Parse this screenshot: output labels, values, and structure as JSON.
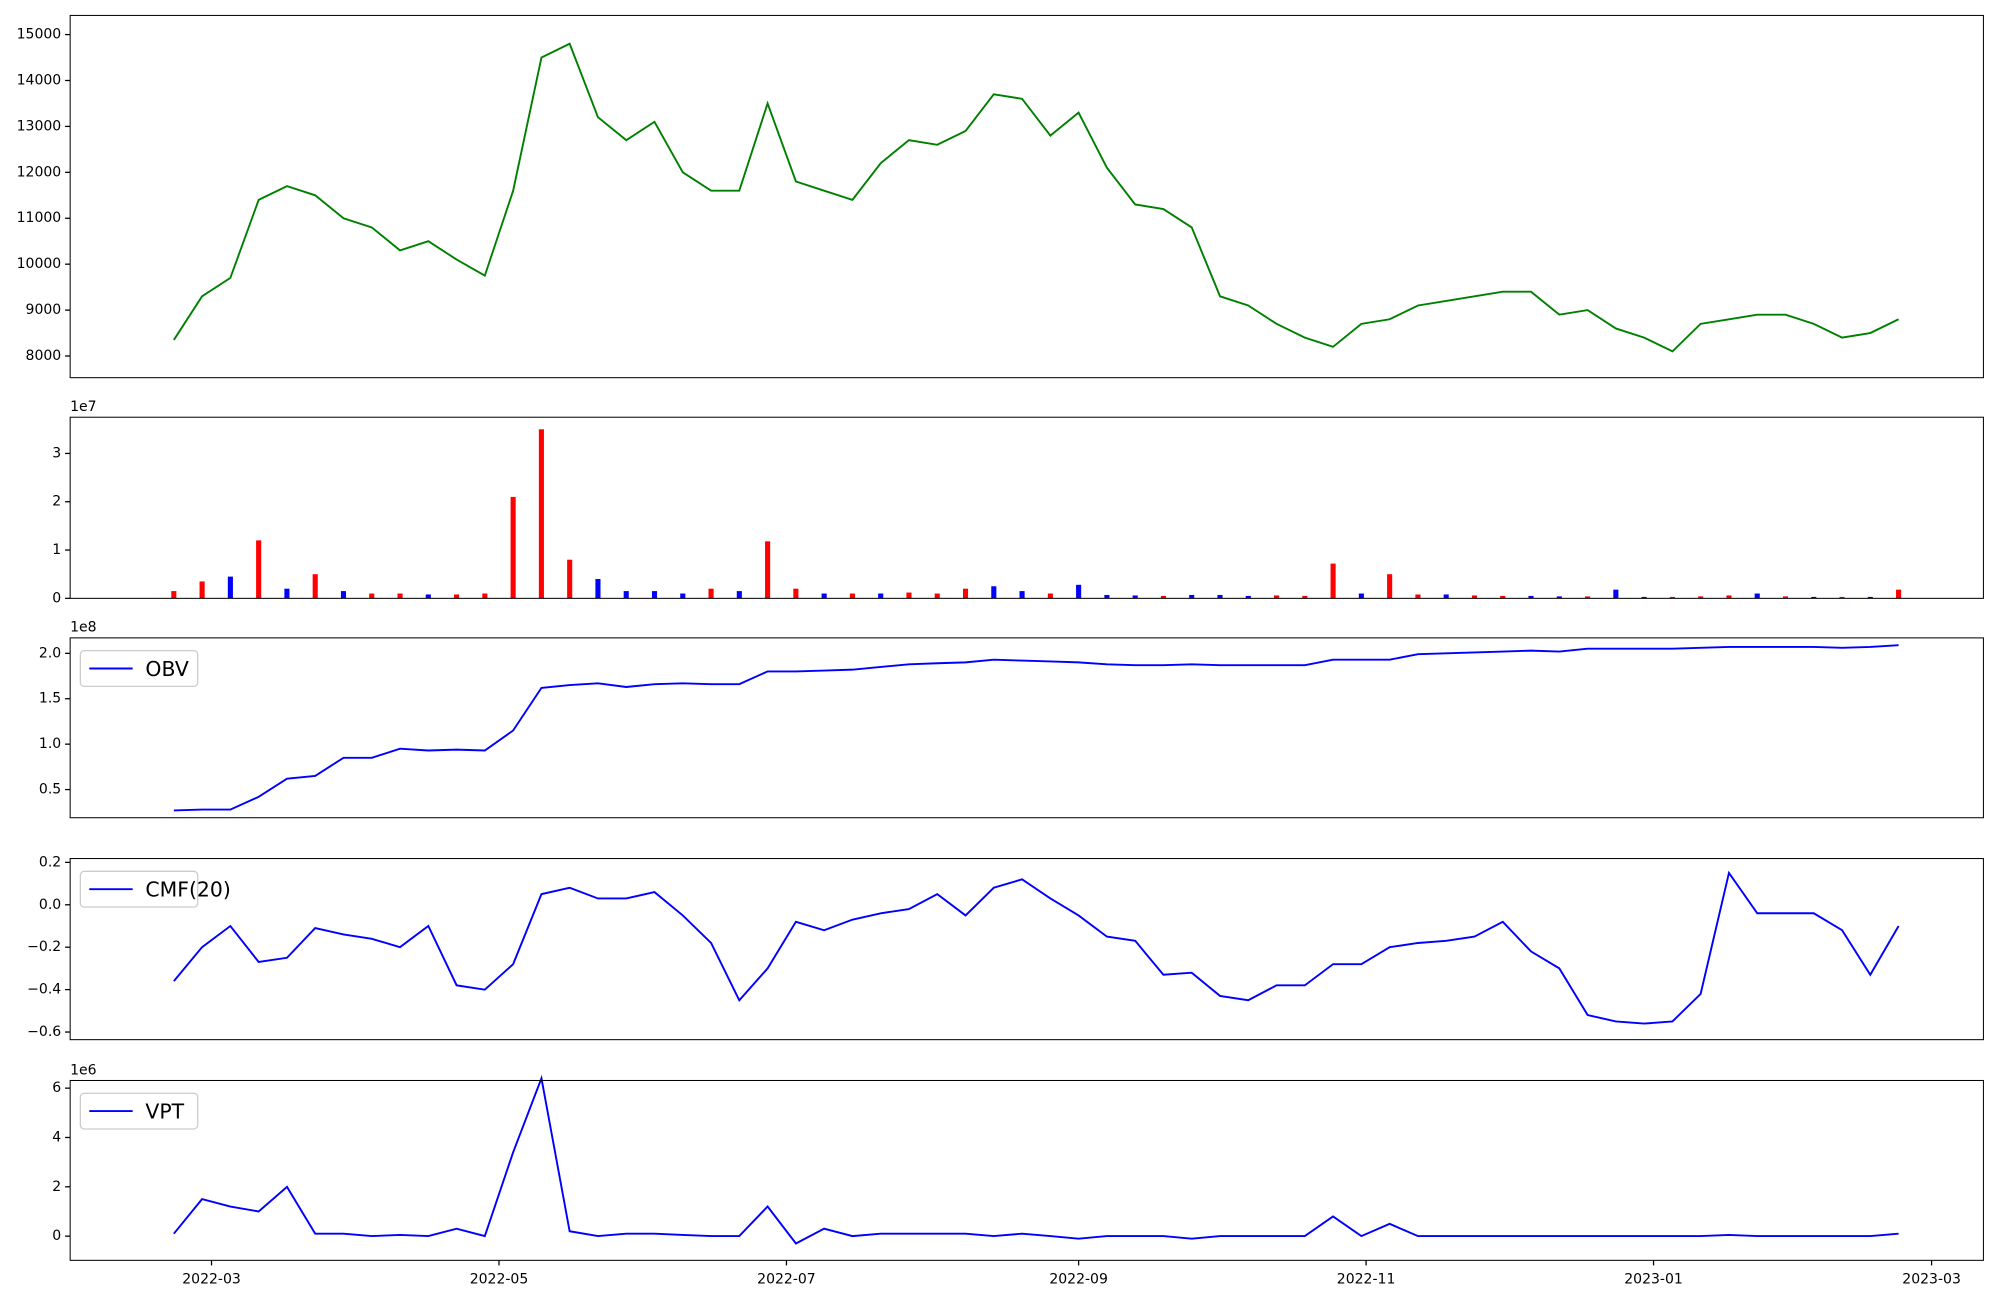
{
  "chart_data": [
    {
      "type": "line",
      "x": [
        -8,
        -2,
        4,
        10,
        16,
        22,
        28,
        34,
        40,
        46,
        52,
        58,
        64,
        70,
        76,
        82,
        88,
        94,
        100,
        106,
        112,
        118,
        124,
        130,
        136,
        142,
        148,
        154,
        160,
        166,
        172,
        178,
        184,
        190,
        196,
        202,
        208,
        214,
        220,
        226,
        232,
        238,
        244,
        250,
        256,
        262,
        268,
        274,
        280,
        286,
        292,
        298,
        304,
        310,
        316,
        322,
        328,
        334,
        340,
        346,
        352,
        358
      ],
      "series": [
        {
          "color": "green",
          "values": [
            8350,
            9300,
            9700,
            11400,
            11700,
            11500,
            11000,
            10800,
            10300,
            10500,
            10100,
            9750,
            11600,
            14500,
            14800,
            13200,
            12700,
            13100,
            12000,
            11600,
            11600,
            13500,
            11800,
            11600,
            11400,
            12200,
            12700,
            12600,
            12900,
            13700,
            13600,
            12800,
            13300,
            12100,
            11300,
            11200,
            10800,
            9300,
            9100,
            8700,
            8400,
            8200,
            8700,
            8800,
            9100,
            9200,
            9300,
            9400,
            9400,
            8900,
            9000,
            8600,
            8400,
            8100,
            8700,
            8800,
            8900,
            8900,
            8700,
            8400,
            8500,
            8800
          ]
        }
      ],
      "xlim": [
        -30,
        376
      ],
      "ylim": [
        7528,
        15417
      ],
      "yticks": [
        8000,
        9000,
        10000,
        11000,
        12000,
        13000,
        14000,
        15000
      ]
    },
    {
      "type": "bar",
      "x": [
        -8,
        -2,
        4,
        10,
        16,
        22,
        28,
        34,
        40,
        46,
        52,
        58,
        64,
        70,
        76,
        82,
        88,
        94,
        100,
        106,
        112,
        118,
        124,
        130,
        136,
        142,
        148,
        154,
        160,
        166,
        172,
        178,
        184,
        190,
        196,
        202,
        208,
        214,
        220,
        226,
        232,
        238,
        244,
        250,
        256,
        262,
        268,
        274,
        280,
        286,
        292,
        298,
        304,
        310,
        316,
        322,
        328,
        334,
        340,
        346,
        352,
        358
      ],
      "values": [
        1500000,
        3500000,
        4500000,
        12000000,
        2000000,
        5000000,
        1500000,
        1000000,
        1000000,
        800000,
        800000,
        1000000,
        21000000,
        35000000,
        8000000,
        4000000,
        1500000,
        1500000,
        1000000,
        2000000,
        1500000,
        11800000,
        2000000,
        1000000,
        1000000,
        1000000,
        1200000,
        1000000,
        2000000,
        2500000,
        1500000,
        1000000,
        2800000,
        700000,
        600000,
        500000,
        700000,
        700000,
        500000,
        600000,
        500000,
        7200000,
        1000000,
        5000000,
        800000,
        800000,
        600000,
        500000,
        500000,
        400000,
        400000,
        1800000,
        300000,
        300000,
        400000,
        600000,
        1000000,
        400000,
        300000,
        300000,
        300000,
        1800000
      ],
      "colors": [
        "red",
        "red",
        "blue",
        "red",
        "blue",
        "red",
        "blue",
        "red",
        "red",
        "blue",
        "red",
        "red",
        "red",
        "red",
        "red",
        "blue",
        "blue",
        "blue",
        "blue",
        "red",
        "blue",
        "red",
        "red",
        "blue",
        "red",
        "blue",
        "red",
        "red",
        "red",
        "blue",
        "blue",
        "red",
        "blue",
        "blue",
        "blue",
        "red",
        "blue",
        "blue",
        "blue",
        "red",
        "red",
        "red",
        "blue",
        "red",
        "red",
        "blue",
        "red",
        "red",
        "blue",
        "blue",
        "red",
        "blue",
        "blue",
        "red",
        "red",
        "red",
        "blue",
        "red",
        "blue",
        "red",
        "blue",
        "red"
      ],
      "xlim": [
        -30,
        376
      ],
      "ylim": [
        0,
        37500000
      ],
      "offset_text": "1e7",
      "yticks": [
        0,
        {
          "value": 10000000,
          "label": "1"
        },
        {
          "value": 20000000,
          "label": "2"
        },
        {
          "value": 30000000,
          "label": "3"
        }
      ]
    },
    {
      "type": "line",
      "x": [
        -8,
        -2,
        4,
        10,
        16,
        22,
        28,
        34,
        40,
        46,
        52,
        58,
        64,
        70,
        76,
        82,
        88,
        94,
        100,
        106,
        112,
        118,
        124,
        130,
        136,
        142,
        148,
        154,
        160,
        166,
        172,
        178,
        184,
        190,
        196,
        202,
        208,
        214,
        220,
        226,
        232,
        238,
        244,
        250,
        256,
        262,
        268,
        274,
        280,
        286,
        292,
        298,
        304,
        310,
        316,
        322,
        328,
        334,
        340,
        346,
        352,
        358
      ],
      "series": [
        {
          "name": "OBV",
          "color": "blue",
          "values": [
            27000000,
            28000000,
            28000000,
            42000000,
            62000000,
            65000000,
            85000000,
            85000000,
            95000000,
            93000000,
            94000000,
            93000000,
            115000000,
            162000000,
            165000000,
            167000000,
            163000000,
            166000000,
            167000000,
            166000000,
            166000000,
            180000000,
            180000000,
            181000000,
            182000000,
            185000000,
            188000000,
            189000000,
            190000000,
            193000000,
            192000000,
            191000000,
            190000000,
            188000000,
            187000000,
            187000000,
            188000000,
            187000000,
            187000000,
            187000000,
            187000000,
            193000000,
            193000000,
            193000000,
            199000000,
            200000000,
            201000000,
            202000000,
            203000000,
            202000000,
            205000000,
            205000000,
            205000000,
            205000000,
            206000000,
            207000000,
            207000000,
            207000000,
            207000000,
            206000000,
            207000000,
            209000000
          ]
        }
      ],
      "xlim": [
        -30,
        376
      ],
      "ylim": [
        19000000,
        217000000
      ],
      "offset_text": "1e8",
      "legend": "upper left",
      "yticks": [
        {
          "value": 50000000,
          "label": "0.5"
        },
        {
          "value": 100000000,
          "label": "1.0"
        },
        {
          "value": 150000000,
          "label": "1.5"
        },
        {
          "value": 200000000,
          "label": "2.0"
        }
      ]
    },
    {
      "type": "line",
      "x": [
        -8,
        -2,
        4,
        10,
        16,
        22,
        28,
        34,
        40,
        46,
        52,
        58,
        64,
        70,
        76,
        82,
        88,
        94,
        100,
        106,
        112,
        118,
        124,
        130,
        136,
        142,
        148,
        154,
        160,
        166,
        172,
        178,
        184,
        190,
        196,
        202,
        208,
        214,
        220,
        226,
        232,
        238,
        244,
        250,
        256,
        262,
        268,
        274,
        280,
        286,
        292,
        298,
        304,
        310,
        316,
        322,
        328,
        334,
        340,
        346,
        352,
        358
      ],
      "series": [
        {
          "name": "CMF(20)",
          "color": "blue",
          "values": [
            -0.36,
            -0.2,
            -0.1,
            -0.27,
            -0.25,
            -0.11,
            -0.14,
            -0.16,
            -0.2,
            -0.1,
            -0.38,
            -0.4,
            -0.28,
            0.05,
            0.08,
            0.03,
            0.03,
            0.06,
            -0.05,
            -0.18,
            -0.45,
            -0.3,
            -0.08,
            -0.12,
            -0.07,
            -0.04,
            -0.02,
            0.05,
            -0.05,
            0.08,
            0.12,
            0.03,
            -0.05,
            -0.15,
            -0.17,
            -0.33,
            -0.32,
            -0.43,
            -0.45,
            -0.38,
            -0.38,
            -0.28,
            -0.28,
            -0.2,
            -0.18,
            -0.17,
            -0.15,
            -0.08,
            -0.22,
            -0.3,
            -0.52,
            -0.55,
            -0.56,
            -0.55,
            -0.42,
            0.15,
            -0.04,
            -0.04,
            -0.04,
            -0.12,
            -0.33,
            -0.1
          ]
        }
      ],
      "xlim": [
        -30,
        376
      ],
      "ylim": [
        -0.636,
        0.218
      ],
      "legend": "upper left",
      "yticks": [
        {
          "value": -0.6,
          "label": "−0.6"
        },
        {
          "value": -0.4,
          "label": "−0.4"
        },
        {
          "value": -0.2,
          "label": "−0.2"
        },
        {
          "value": 0,
          "label": "0.0"
        },
        0.2
      ]
    },
    {
      "type": "line",
      "x": [
        -8,
        -2,
        4,
        10,
        16,
        22,
        28,
        34,
        40,
        46,
        52,
        58,
        64,
        70,
        76,
        82,
        88,
        94,
        100,
        106,
        112,
        118,
        124,
        130,
        136,
        142,
        148,
        154,
        160,
        166,
        172,
        178,
        184,
        190,
        196,
        202,
        208,
        214,
        220,
        226,
        232,
        238,
        244,
        250,
        256,
        262,
        268,
        274,
        280,
        286,
        292,
        298,
        304,
        310,
        316,
        322,
        328,
        334,
        340,
        346,
        352,
        358
      ],
      "series": [
        {
          "name": "VPT",
          "color": "blue",
          "values": [
            100000,
            1500000,
            1200000,
            1000000,
            2000000,
            100000,
            100000,
            0,
            50000,
            0,
            300000,
            0,
            3400000,
            6400000,
            200000,
            0,
            100000,
            100000,
            50000,
            0,
            0,
            1200000,
            -300000,
            300000,
            0,
            100000,
            100000,
            100000,
            100000,
            0,
            100000,
            0,
            -100000,
            0,
            0,
            0,
            -100000,
            0,
            0,
            0,
            0,
            800000,
            0,
            500000,
            0,
            0,
            0,
            0,
            0,
            0,
            0,
            0,
            0,
            0,
            0,
            50000,
            0,
            0,
            0,
            0,
            0,
            100000
          ]
        }
      ],
      "xlim": [
        -30,
        376
      ],
      "ylim": [
        -980000,
        6310000
      ],
      "offset_text": "1e6",
      "legend": "upper left",
      "yticks": [
        0,
        {
          "value": 2000000,
          "label": "2"
        },
        {
          "value": 4000000,
          "label": "4"
        },
        {
          "value": 6000000,
          "label": "6"
        }
      ],
      "xticks": [
        {
          "value": 0,
          "label": "2022-03"
        },
        {
          "value": 61,
          "label": "2022-05"
        },
        {
          "value": 122,
          "label": "2022-07"
        },
        {
          "value": 184,
          "label": "2022-09"
        },
        {
          "value": 245,
          "label": "2022-11"
        },
        {
          "value": 306,
          "label": "2023-01"
        },
        {
          "value": 365,
          "label": "2023-03"
        }
      ]
    }
  ]
}
